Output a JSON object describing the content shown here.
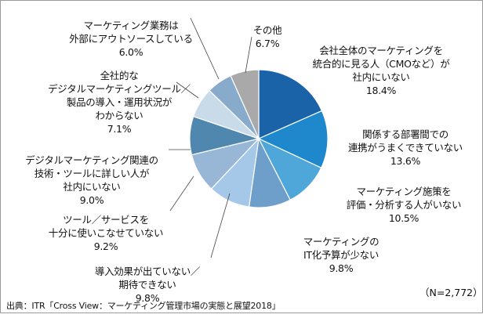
{
  "chart_data": {
    "type": "pie",
    "slices": [
      {
        "label": "会社全体のマーケティングを\n統合的に見る人（CMOなど）が\n社内にいない",
        "value_text": "18.4%",
        "value": 18.4,
        "color": "#1a63a8"
      },
      {
        "label": "関係する部署間での\n連携がうまくできていない",
        "value_text": "13.6%",
        "value": 13.6,
        "color": "#1f88cc"
      },
      {
        "label": "マーケティング施策を\n評価・分析する人がいない",
        "value_text": "10.5%",
        "value": 10.5,
        "color": "#4fa6d9"
      },
      {
        "label": "マーケティングの\nIT化予算が少ない",
        "value_text": "9.8%",
        "value": 9.8,
        "color": "#6e9fcb"
      },
      {
        "label": "導入効果が出ていない／\n期待できない",
        "value_text": "9.8%",
        "value": 9.8,
        "color": "#a5c8e8"
      },
      {
        "label": "ツール／サービスを\n十分に使いこなせていない",
        "value_text": "9.2%",
        "value": 9.2,
        "color": "#98b7d6"
      },
      {
        "label": "デジタルマーケティング関連の\n技術・ツールに詳しい人が\n社内にいない",
        "value_text": "9.0%",
        "value": 9.0,
        "color": "#4f87ae"
      },
      {
        "label": "全社的な\nデジタルマーケティングツール／\n製品の導入・運用状況が\nわからない",
        "value_text": "7.1%",
        "value": 7.1,
        "color": "#c9dbe8"
      },
      {
        "label": "マーケティング業務は\n外部にアウトソースしている",
        "value_text": "6.0%",
        "value": 6.0,
        "color": "#88abcc"
      },
      {
        "label": "その他",
        "value_text": "6.7%",
        "value": 6.7,
        "color": "#a9a9a9"
      }
    ],
    "extra_slice_color": "#c6daf1"
  },
  "n_label": "（N=2,772）",
  "source": "出典：ITR「Cross View：マーケティング管理市場の実態と展望2018」"
}
